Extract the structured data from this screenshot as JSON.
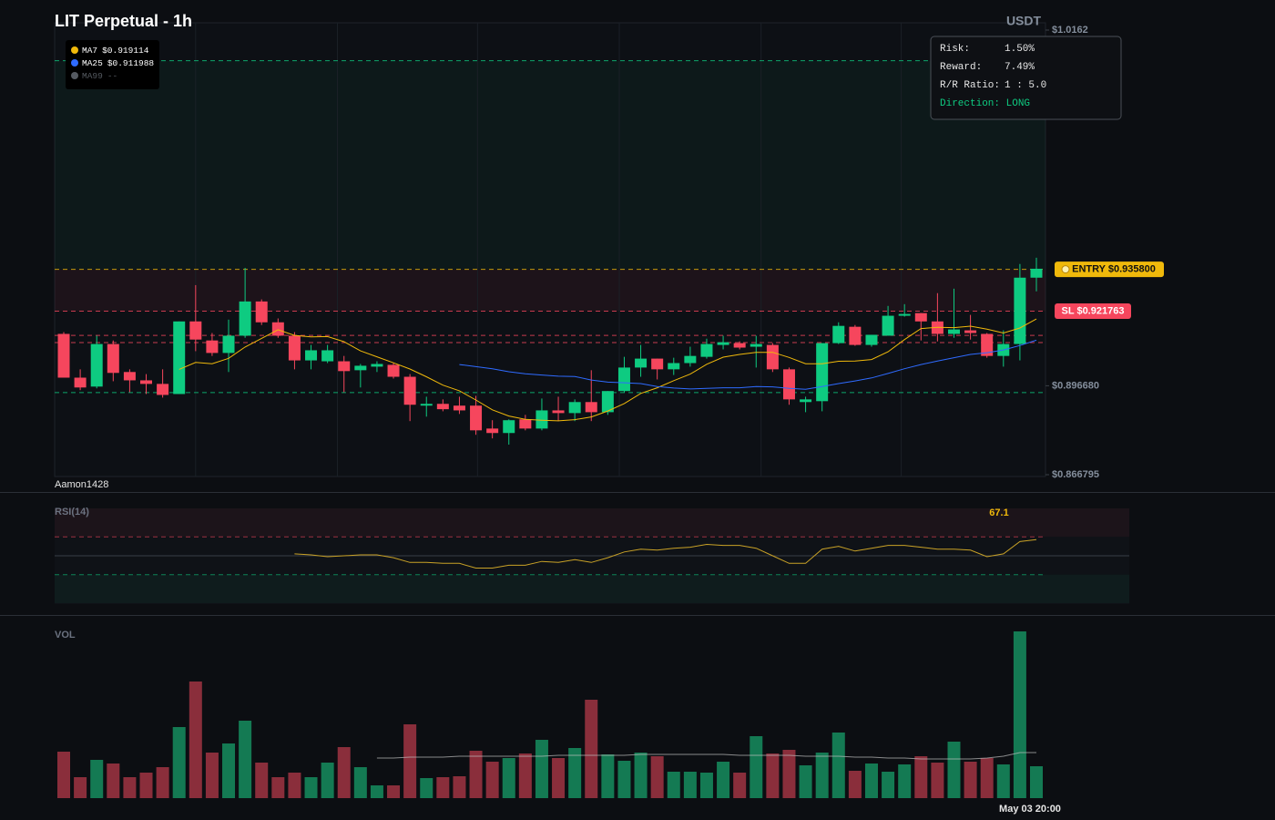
{
  "chart_data": [
    {
      "type": "candlestick",
      "title": "LIT Perpetual - 1h",
      "unit_label": "USDT",
      "watermark": "Aamon1428",
      "ylim": [
        0.866795,
        1.0162
      ],
      "yticks": [
        {
          "value": 1.0162,
          "label": "$1.0162"
        },
        {
          "value": 0.89668,
          "label": "$0.896680"
        },
        {
          "value": 0.866795,
          "label": "$0.866795"
        }
      ],
      "xgrid": [
        8,
        16.6,
        25.1,
        33.7,
        42.3,
        50.8
      ],
      "up_color": "#0ecb81",
      "down_color": "#f6465d",
      "open": [
        0.9141,
        0.8994,
        0.8964,
        0.9107,
        0.9013,
        0.8985,
        0.8973,
        0.8939,
        0.9183,
        0.9119,
        0.9077,
        0.9135,
        0.925,
        0.918,
        0.9135,
        0.9052,
        0.9049,
        0.9049,
        0.9019,
        0.9031,
        0.9037,
        0.8997,
        0.89,
        0.8906,
        0.89,
        0.89,
        0.8823,
        0.8808,
        0.8854,
        0.8823,
        0.8884,
        0.8875,
        0.8912,
        0.8878,
        0.8949,
        0.9028,
        0.9058,
        0.9022,
        0.9043,
        0.9064,
        0.9104,
        0.911,
        0.9098,
        0.9104,
        0.9022,
        0.8912,
        0.8915,
        0.911,
        0.9165,
        0.9104,
        0.9135,
        0.9202,
        0.9211,
        0.9183,
        0.9141,
        0.9153,
        0.9141,
        0.9067,
        0.9107,
        0.933
      ],
      "high": [
        0.9147,
        0.9022,
        0.9135,
        0.9119,
        0.9022,
        0.9006,
        0.9022,
        0.9183,
        0.9305,
        0.9144,
        0.9189,
        0.9363,
        0.9257,
        0.9193,
        0.9147,
        0.9104,
        0.9104,
        0.9067,
        0.904,
        0.9049,
        0.9043,
        0.9006,
        0.893,
        0.8921,
        0.893,
        0.8933,
        0.8851,
        0.8854,
        0.8869,
        0.8924,
        0.893,
        0.8921,
        0.9019,
        0.8949,
        0.9064,
        0.9104,
        0.9058,
        0.9061,
        0.9098,
        0.9125,
        0.9135,
        0.9116,
        0.9135,
        0.911,
        0.9028,
        0.893,
        0.911,
        0.918,
        0.9171,
        0.9138,
        0.9235,
        0.9241,
        0.9211,
        0.9278,
        0.9293,
        0.9205,
        0.9144,
        0.9153,
        0.9376,
        0.9397
      ],
      "low": [
        0.8994,
        0.8952,
        0.8958,
        0.8982,
        0.8945,
        0.8939,
        0.8927,
        0.8939,
        0.9083,
        0.9067,
        0.9013,
        0.9128,
        0.9171,
        0.9128,
        0.9022,
        0.9022,
        0.9043,
        0.8945,
        0.8961,
        0.9013,
        0.8991,
        0.8848,
        0.8863,
        0.8881,
        0.8872,
        0.8802,
        0.879,
        0.8769,
        0.8817,
        0.8817,
        0.8848,
        0.8848,
        0.8848,
        0.8869,
        0.8945,
        0.8997,
        0.8988,
        0.9003,
        0.9031,
        0.9058,
        0.9089,
        0.9089,
        0.9028,
        0.9013,
        0.8903,
        0.8878,
        0.8881,
        0.9107,
        0.9101,
        0.9098,
        0.9135,
        0.9199,
        0.9119,
        0.9116,
        0.9128,
        0.9122,
        0.9061,
        0.9031,
        0.9052,
        0.9284
      ],
      "close": [
        0.8994,
        0.8961,
        0.9107,
        0.901,
        0.8985,
        0.8973,
        0.8936,
        0.9183,
        0.9122,
        0.9077,
        0.9135,
        0.925,
        0.918,
        0.9135,
        0.9052,
        0.9086,
        0.9086,
        0.9016,
        0.9034,
        0.904,
        0.8997,
        0.8903,
        0.8906,
        0.8888,
        0.8884,
        0.8817,
        0.8808,
        0.8851,
        0.8823,
        0.8884,
        0.8875,
        0.8912,
        0.8878,
        0.8949,
        0.9028,
        0.9058,
        0.9022,
        0.9043,
        0.9067,
        0.9107,
        0.9113,
        0.9095,
        0.9107,
        0.9022,
        0.8921,
        0.8921,
        0.911,
        0.9168,
        0.9104,
        0.9138,
        0.9202,
        0.9208,
        0.9183,
        0.9141,
        0.9156,
        0.9144,
        0.9067,
        0.9107,
        0.933,
        0.936
      ],
      "indicators": [
        {
          "name": "MA7",
          "color": "#f0b90b",
          "latest_label": "$0.919114",
          "values": [
            null,
            null,
            null,
            null,
            null,
            null,
            null,
            0.9022,
            0.9045,
            0.9041,
            0.9059,
            0.9097,
            0.9126,
            0.9155,
            0.9136,
            0.9131,
            0.9132,
            0.9115,
            0.9084,
            0.9064,
            0.9044,
            0.9023,
            0.8997,
            0.8969,
            0.895,
            0.8919,
            0.8886,
            0.8865,
            0.8854,
            0.8851,
            0.8849,
            0.8853,
            0.8862,
            0.8882,
            0.8907,
            0.8941,
            0.896,
            0.8984,
            0.9006,
            0.9039,
            0.9063,
            0.9072,
            0.9079,
            0.9079,
            0.9062,
            0.9041,
            0.9041,
            0.9049,
            0.905,
            0.9055,
            0.9081,
            0.9122,
            0.9159,
            0.9163,
            0.9162,
            0.9167,
            0.9157,
            0.9144,
            0.9161,
            0.919114
          ]
        },
        {
          "name": "MA25",
          "color": "#2f6bff",
          "latest_label": "$0.911988",
          "values": [
            null,
            null,
            null,
            null,
            null,
            null,
            null,
            null,
            null,
            null,
            null,
            null,
            null,
            null,
            null,
            null,
            null,
            null,
            null,
            null,
            null,
            null,
            null,
            null,
            0.9038,
            0.9031,
            0.9024,
            0.9014,
            0.9007,
            0.9003,
            0.8999,
            0.8998,
            0.8986,
            0.8979,
            0.8977,
            0.8974,
            0.8964,
            0.8959,
            0.8956,
            0.8958,
            0.896,
            0.896,
            0.8964,
            0.8963,
            0.8958,
            0.8955,
            0.8964,
            0.8974,
            0.8983,
            0.8993,
            0.9008,
            0.9024,
            0.9038,
            0.905,
            0.9061,
            0.9072,
            0.9078,
            0.9087,
            0.9102,
            0.911988
          ]
        },
        {
          "name": "MA99",
          "color": "#555a61",
          "latest_label": "--"
        }
      ],
      "entry": {
        "label": "ENTRY $0.935800",
        "value": 0.9358,
        "color": "#f0b90b"
      },
      "stop": {
        "label": "SL $0.921763",
        "value": 0.921763,
        "color": "#f6465d"
      },
      "target": {
        "value": 1.005893,
        "color": "#0ecb81"
      },
      "levels": [
        {
          "value": 0.9136,
          "color": "#f6465d"
        },
        {
          "value": 0.9112,
          "color": "#f6465d"
        },
        {
          "value": 0.8944,
          "color": "#0ecb81"
        }
      ],
      "risk_box": {
        "rows": [
          [
            "Risk:",
            "1.50%"
          ],
          [
            "Reward:",
            "7.49%"
          ],
          [
            "R/R Ratio:",
            "1 : 5.0"
          ]
        ],
        "direction": "Direction: LONG"
      }
    },
    {
      "type": "line",
      "title": "RSI(14)",
      "ylim": [
        0,
        100
      ],
      "overbought": 70,
      "mid": 50,
      "oversold": 30,
      "series": [
        {
          "color": "#c9a227",
          "values": [
            null,
            null,
            null,
            null,
            null,
            null,
            null,
            null,
            null,
            null,
            null,
            null,
            null,
            null,
            52,
            51,
            49,
            50,
            51,
            51,
            48,
            43,
            43,
            42,
            42,
            37,
            37,
            40,
            40,
            44,
            43,
            46,
            43,
            48,
            54,
            57,
            56,
            58,
            59,
            62,
            61,
            61,
            58,
            50,
            42,
            42,
            57,
            60,
            55,
            58,
            61,
            61,
            59,
            57,
            57,
            56,
            49,
            52,
            65,
            67.1
          ]
        }
      ]
    },
    {
      "type": "bar",
      "title": "VOL",
      "ylim": [
        0,
        200
      ],
      "up_color": "#147a53",
      "down_color": "#8a2e3b",
      "categories": [
        null,
        null,
        null,
        null,
        null,
        null,
        null,
        null,
        null,
        null,
        null,
        null,
        null,
        null,
        null,
        null,
        null,
        null,
        null,
        null,
        null,
        null,
        null,
        null,
        null,
        null,
        null,
        null,
        null,
        null,
        null,
        null,
        null,
        null,
        null,
        null,
        null,
        null,
        null,
        null,
        null,
        null,
        null,
        null,
        null,
        null,
        null,
        null,
        null,
        null,
        null,
        null,
        null,
        null,
        null,
        null,
        null,
        null,
        null,
        "May 03 20:00"
      ],
      "values": [
        51,
        23,
        42,
        38,
        23,
        28,
        34,
        78,
        128,
        50,
        60,
        85,
        39,
        23,
        28,
        23,
        39,
        56,
        34,
        14,
        14,
        81,
        22,
        23,
        24,
        52,
        40,
        44,
        49,
        64,
        44,
        55,
        108,
        48,
        41,
        50,
        46,
        29,
        29,
        28,
        40,
        28,
        68,
        49,
        53,
        36,
        50,
        72,
        30,
        38,
        29,
        37,
        46,
        39,
        62,
        40,
        44,
        37,
        183,
        35
      ],
      "ma": {
        "color": "#bfbfbf",
        "values": [
          null,
          null,
          null,
          null,
          null,
          null,
          null,
          null,
          null,
          null,
          null,
          null,
          null,
          null,
          null,
          null,
          null,
          null,
          null,
          44,
          44,
          45,
          45,
          45,
          46,
          46,
          46,
          46,
          46,
          46,
          47,
          47,
          47,
          47,
          47,
          48,
          48,
          48,
          48,
          48,
          48,
          47,
          47,
          47,
          47,
          46,
          46,
          46,
          45,
          45,
          44,
          44,
          43,
          43,
          43,
          43,
          44,
          46,
          50,
          50
        ]
      }
    }
  ]
}
